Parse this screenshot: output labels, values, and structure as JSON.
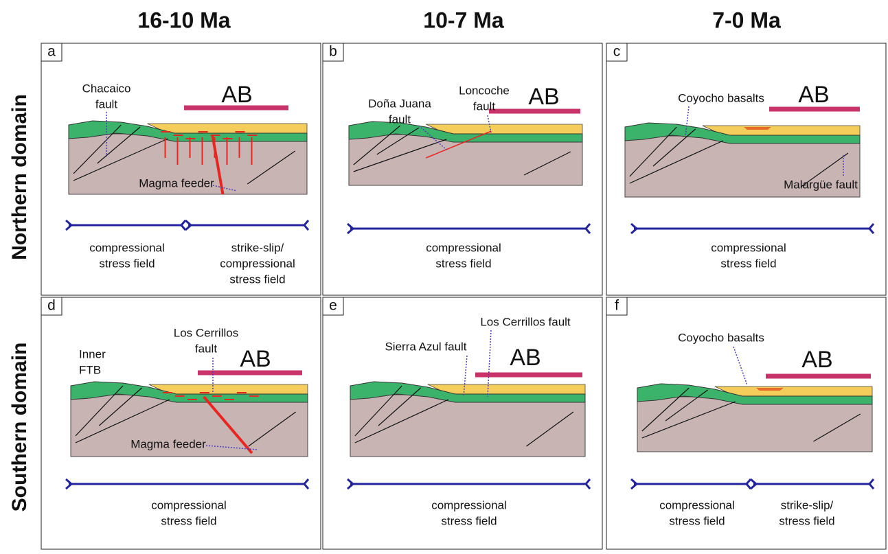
{
  "columns": [
    "16-10 Ma",
    "10-7 Ma",
    "7-0 Ma"
  ],
  "rows": [
    "Northern domain",
    "Southern domain"
  ],
  "panels": [
    {
      "letter": "a",
      "bar_label": "AB",
      "annotations": [
        [
          "Chacaico",
          "fault"
        ],
        [
          "Magma feeder"
        ]
      ],
      "stress": [
        [
          "compressional",
          "stress field"
        ],
        [
          "strike-slip/",
          "compressional",
          "stress field"
        ]
      ]
    },
    {
      "letter": "b",
      "bar_label": "AB",
      "annotations": [
        [
          "Doña Juana",
          "fault"
        ],
        [
          "Loncoche",
          "fault"
        ]
      ],
      "stress": [
        [
          "compressional",
          "stress field"
        ]
      ]
    },
    {
      "letter": "c",
      "bar_label": "AB",
      "annotations": [
        [
          "Coyocho basalts"
        ],
        [
          "Malargüe fault"
        ]
      ],
      "stress": [
        [
          "compressional",
          "stress field"
        ]
      ]
    },
    {
      "letter": "d",
      "bar_label": "AB",
      "annotations": [
        [
          "Inner",
          "FTB"
        ],
        [
          "Los Cerrillos",
          "fault"
        ],
        [
          "Magma feeder"
        ]
      ],
      "stress": [
        [
          "compressional",
          "stress field"
        ]
      ]
    },
    {
      "letter": "e",
      "bar_label": "AB",
      "annotations": [
        [
          "Los Cerrillos fault"
        ],
        [
          "Sierra Azul fault"
        ]
      ],
      "stress": [
        [
          "compressional",
          "stress field"
        ]
      ]
    },
    {
      "letter": "f",
      "bar_label": "AB",
      "annotations": [
        [
          "Coyocho basalts"
        ]
      ],
      "stress": [
        [
          "compressional",
          "stress field"
        ],
        [
          "strike-slip/",
          "stress field"
        ]
      ]
    }
  ]
}
